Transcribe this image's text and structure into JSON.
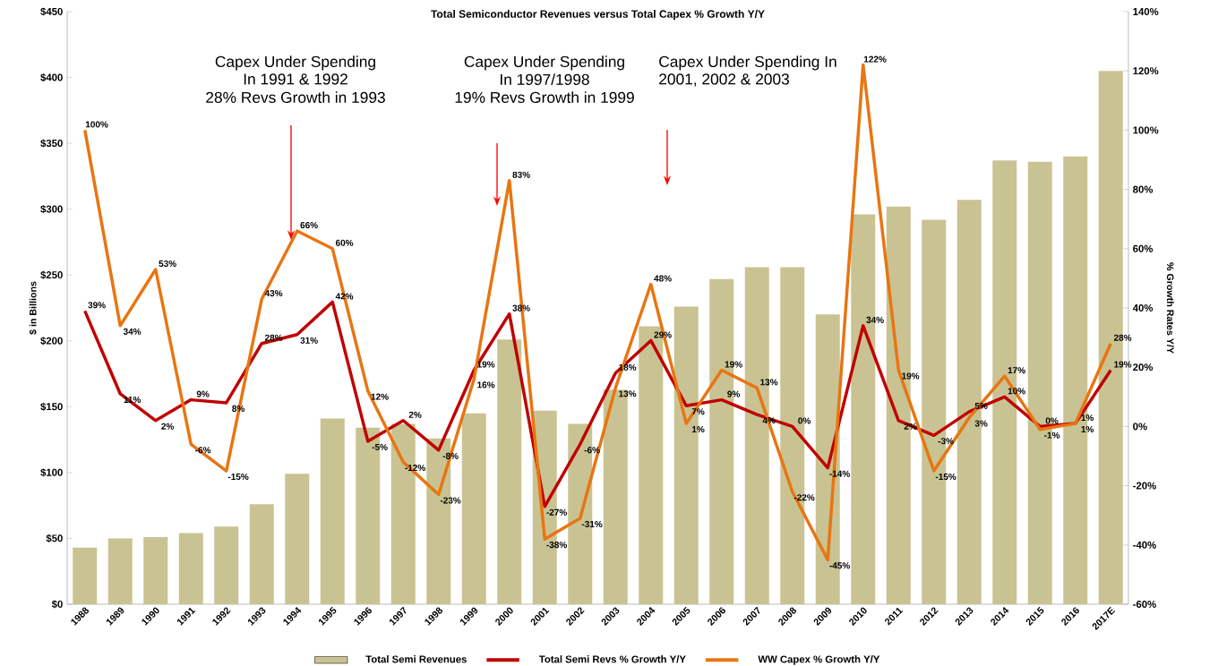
{
  "chart_data": {
    "type": "bar",
    "title": "Total Semiconductor Revenues versus Total Capex % Growth Y/Y",
    "categories": [
      "1988",
      "1989",
      "1990",
      "1991",
      "1992",
      "1993",
      "1994",
      "1995",
      "1996",
      "1997",
      "1998",
      "1999",
      "2000",
      "2001",
      "2002",
      "2003",
      "2004",
      "2005",
      "2006",
      "2007",
      "2008",
      "2009",
      "2010",
      "2011",
      "2012",
      "2013",
      "2014",
      "2015",
      "2016",
      "2017E"
    ],
    "ylabel": "$ in Billions",
    "y2label": "% Growth Rates Y/Y",
    "ylim": [
      0,
      450
    ],
    "yticks": [
      {
        "value": 0,
        "label": "$0"
      },
      {
        "value": 50,
        "label": "$50"
      },
      {
        "value": 100,
        "label": "$100"
      },
      {
        "value": 150,
        "label": "$150"
      },
      {
        "value": 200,
        "label": "$200"
      },
      {
        "value": 250,
        "label": "$250"
      },
      {
        "value": 300,
        "label": "$300"
      },
      {
        "value": 350,
        "label": "$350"
      },
      {
        "value": 400,
        "label": "$400"
      },
      {
        "value": 450,
        "label": "$450"
      }
    ],
    "y2lim": [
      -60,
      140
    ],
    "y2ticks": [
      {
        "value": -60,
        "label": "-60%"
      },
      {
        "value": -40,
        "label": "-40%"
      },
      {
        "value": -20,
        "label": "-20%"
      },
      {
        "value": 0,
        "label": "0%"
      },
      {
        "value": 20,
        "label": "20%"
      },
      {
        "value": 40,
        "label": "40%"
      },
      {
        "value": 60,
        "label": "60%"
      },
      {
        "value": 80,
        "label": "80%"
      },
      {
        "value": 100,
        "label": "100%"
      },
      {
        "value": 120,
        "label": "120%"
      },
      {
        "value": 140,
        "label": "140%"
      }
    ],
    "series": [
      {
        "name": "Total Semi Revenues",
        "color": "#c9c393",
        "values": [
          43,
          50,
          51,
          54,
          59,
          76,
          99,
          141,
          134,
          137,
          126,
          145,
          201,
          147,
          137,
          163,
          211,
          226,
          247,
          256,
          256,
          220,
          296,
          302,
          292,
          307,
          337,
          336,
          340,
          405
        ]
      },
      {
        "name": "Total Semi Revs % Growth Y/Y",
        "type": "line",
        "axis": "y2",
        "color": "#c00000",
        "values": [
          39,
          11,
          2,
          9,
          8,
          28,
          31,
          42,
          -5,
          2,
          -8,
          19,
          38,
          -27,
          -6,
          18,
          29,
          7,
          9,
          4,
          0,
          -14,
          34,
          2,
          -3,
          5,
          10,
          0,
          1,
          19
        ],
        "value_labels": [
          "39%",
          "11%",
          "2%",
          "9%",
          "8%",
          "28%",
          "31%",
          "42%",
          "-5%",
          "2%",
          "-8%",
          "19%",
          "38%",
          "-27%",
          "-6%",
          "18%",
          "29%",
          "7%",
          "9%",
          "4%",
          "0%",
          "-14%",
          "34%",
          "2%",
          "-3%",
          "5%",
          "10%",
          "0%",
          "1%",
          "19%"
        ]
      },
      {
        "name": "WW Capex % Growth Y/Y",
        "type": "line",
        "axis": "y2",
        "color": "#e87511",
        "values": [
          100,
          34,
          53,
          -6,
          -15,
          43,
          66,
          60,
          12,
          -12,
          -23,
          16,
          83,
          -38,
          -31,
          13,
          48,
          1,
          19,
          13,
          -22,
          -45,
          122,
          19,
          -15,
          3,
          17,
          -1,
          1,
          28
        ],
        "value_labels": [
          "100%",
          "34%",
          "53%",
          "-6%",
          "-15%",
          "43%",
          "66%",
          "60%",
          "12%",
          "-12%",
          "-23%",
          "16%",
          "83%",
          "-38%",
          "-31%",
          "13%",
          "48%",
          "1%",
          "19%",
          "13%",
          "-22%",
          "-45%",
          "122%",
          "19%",
          "-15%",
          "3%",
          "17%",
          "-1%",
          "1%",
          "28%"
        ]
      }
    ],
    "annotations": [
      "Capex Under Spending",
      "In 1991 & 1992",
      "28% Revs Growth in 1993",
      "Capex Under Spending",
      "In 1997/1998",
      "19% Revs Growth in 1999",
      "Capex Under Spending In",
      "2001, 2002 & 2003"
    ],
    "legend": "bottom",
    "marker": "none",
    "line_style": "solid",
    "grid": false
  }
}
